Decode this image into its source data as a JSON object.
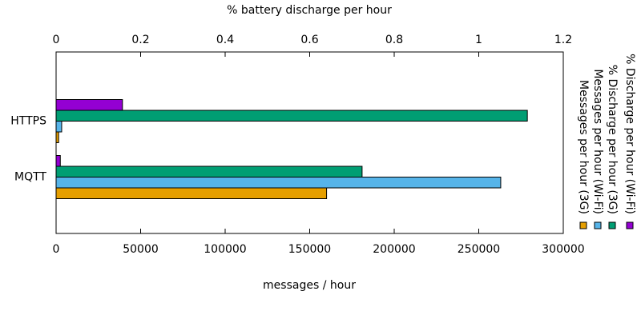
{
  "chart_data": {
    "type": "bar",
    "orientation": "horizontal",
    "xlabel": "messages / hour",
    "x2label": "% battery discharge per hour",
    "categories": [
      "HTTPS",
      "MQTT"
    ],
    "series": [
      {
        "name": "Messages per hour (3G)",
        "color": "#e69f00",
        "axis": "x",
        "values": [
          1500,
          160000
        ]
      },
      {
        "name": "Messages per hour (Wi-Fi)",
        "color": "#56b4e9",
        "axis": "x",
        "values": [
          3300,
          263000
        ]
      },
      {
        "name": "% Discharge per hour (3G)",
        "color": "#009e73",
        "axis": "x2",
        "values": [
          1.115,
          0.724
        ]
      },
      {
        "name": "% Discharge per hour (Wi-Fi)",
        "color": "#9400d3",
        "axis": "x2",
        "values": [
          0.157,
          0.01
        ]
      }
    ],
    "xlim": [
      0,
      300000
    ],
    "xticks": [
      0,
      50000,
      100000,
      150000,
      200000,
      250000,
      300000
    ],
    "x2lim": [
      0,
      1.2
    ],
    "x2ticks": [
      0,
      0.2,
      0.4,
      0.6,
      0.8,
      1,
      1.2
    ],
    "grid": false
  }
}
